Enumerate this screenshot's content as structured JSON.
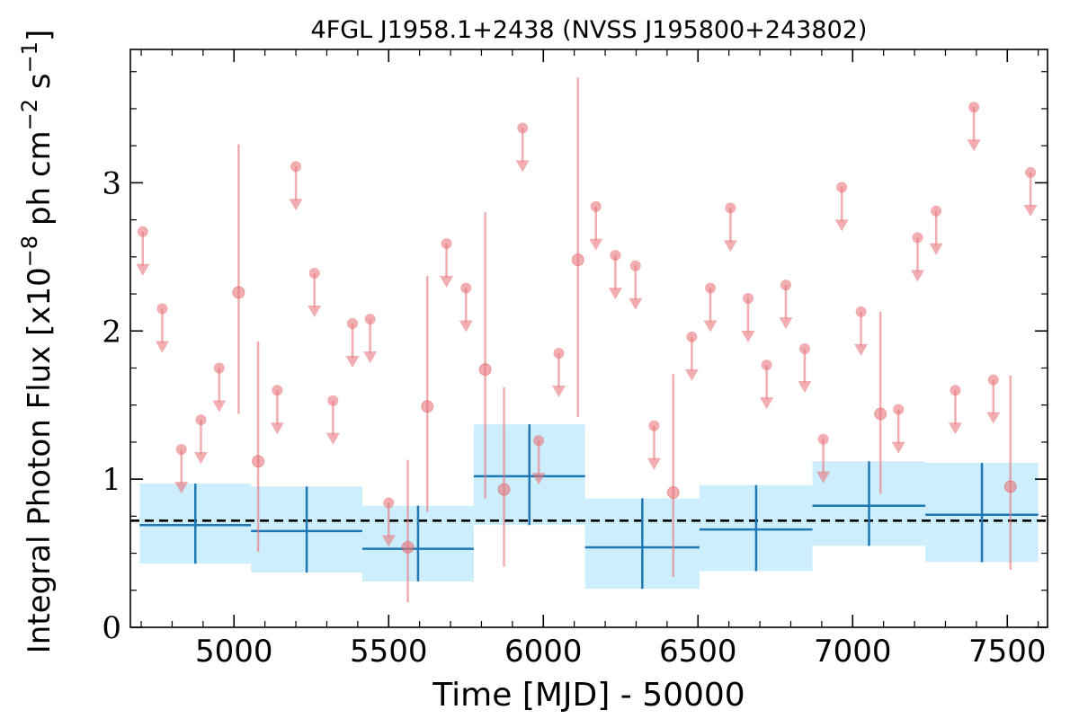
{
  "chart_data": {
    "type": "scatter",
    "title": "4FGL J1958.1+2438 (NVSS J195800+243802)",
    "xlabel": "Time [MJD] - 50000",
    "ylabel": "Integral Photon Flux [x10^-8 ph cm^-2 s^-1]",
    "ylabel_parts": {
      "prefix": "Integral Photon Flux [x10",
      "exp1": "−8",
      "mid1": " ph cm",
      "exp2": "−2",
      "mid2": " s",
      "exp3": "−1",
      "suffix": "]"
    },
    "xlim": [
      4665,
      7630
    ],
    "ylim": [
      0,
      3.9
    ],
    "xticks": [
      {
        "value": 5000,
        "label": "5000"
      },
      {
        "value": 5500,
        "label": "5500"
      },
      {
        "value": 6000,
        "label": "6000"
      },
      {
        "value": 6500,
        "label": "6500"
      },
      {
        "value": 7000,
        "label": "7000"
      },
      {
        "value": 7500,
        "label": "7500"
      }
    ],
    "yticks": [
      {
        "value": 0,
        "label": "0"
      },
      {
        "value": 1,
        "label": "1"
      },
      {
        "value": 2,
        "label": "2"
      },
      {
        "value": 3,
        "label": "3"
      }
    ],
    "grid": false,
    "colors": {
      "points": "#e8777c",
      "bins": "#1f77b4",
      "band": "#cdeefc",
      "mean": "#000000"
    },
    "mean_flux": 0.72,
    "detections": [
      {
        "x": 5015,
        "y": 2.26,
        "lo": 1.44,
        "hi": 3.26
      },
      {
        "x": 5078,
        "y": 1.12,
        "lo": 0.51,
        "hi": 1.93
      },
      {
        "x": 5562,
        "y": 0.54,
        "lo": 0.17,
        "hi": 1.13
      },
      {
        "x": 5625,
        "y": 1.49,
        "lo": 0.78,
        "hi": 2.37
      },
      {
        "x": 5812,
        "y": 1.74,
        "lo": 0.87,
        "hi": 2.8
      },
      {
        "x": 5873,
        "y": 0.93,
        "lo": 0.41,
        "hi": 1.62
      },
      {
        "x": 6112,
        "y": 2.48,
        "lo": 1.42,
        "hi": 3.71
      },
      {
        "x": 6420,
        "y": 0.91,
        "lo": 0.34,
        "hi": 1.71
      },
      {
        "x": 7090,
        "y": 1.44,
        "lo": 0.9,
        "hi": 2.13
      },
      {
        "x": 7510,
        "y": 0.95,
        "lo": 0.39,
        "hi": 1.7
      }
    ],
    "upper_limits": [
      {
        "x": 4705,
        "y": 2.67
      },
      {
        "x": 4768,
        "y": 2.15
      },
      {
        "x": 4830,
        "y": 1.2
      },
      {
        "x": 4893,
        "y": 1.4
      },
      {
        "x": 4952,
        "y": 1.75
      },
      {
        "x": 5140,
        "y": 1.6
      },
      {
        "x": 5200,
        "y": 3.11
      },
      {
        "x": 5260,
        "y": 2.39
      },
      {
        "x": 5320,
        "y": 1.53
      },
      {
        "x": 5383,
        "y": 2.05
      },
      {
        "x": 5440,
        "y": 2.08
      },
      {
        "x": 5500,
        "y": 0.84
      },
      {
        "x": 5687,
        "y": 2.59
      },
      {
        "x": 5750,
        "y": 2.29
      },
      {
        "x": 5933,
        "y": 3.37
      },
      {
        "x": 5985,
        "y": 1.26
      },
      {
        "x": 6050,
        "y": 1.85
      },
      {
        "x": 6170,
        "y": 2.84
      },
      {
        "x": 6233,
        "y": 2.51
      },
      {
        "x": 6298,
        "y": 2.44
      },
      {
        "x": 6358,
        "y": 1.36
      },
      {
        "x": 6480,
        "y": 1.96
      },
      {
        "x": 6540,
        "y": 2.29
      },
      {
        "x": 6605,
        "y": 2.83
      },
      {
        "x": 6662,
        "y": 2.22
      },
      {
        "x": 6722,
        "y": 1.77
      },
      {
        "x": 6784,
        "y": 2.31
      },
      {
        "x": 6845,
        "y": 1.88
      },
      {
        "x": 6905,
        "y": 1.27
      },
      {
        "x": 6965,
        "y": 2.97
      },
      {
        "x": 7027,
        "y": 2.13
      },
      {
        "x": 7148,
        "y": 1.47
      },
      {
        "x": 7210,
        "y": 2.63
      },
      {
        "x": 7270,
        "y": 2.81
      },
      {
        "x": 7332,
        "y": 1.6
      },
      {
        "x": 7392,
        "y": 3.51
      },
      {
        "x": 7455,
        "y": 1.67
      },
      {
        "x": 7575,
        "y": 3.07
      }
    ],
    "bins": [
      {
        "x0": 4695,
        "x1": 5055,
        "xc": 4875,
        "y": 0.69,
        "lo": 0.43,
        "hi": 0.97
      },
      {
        "x0": 5055,
        "x1": 5415,
        "xc": 5235,
        "y": 0.65,
        "lo": 0.37,
        "hi": 0.95
      },
      {
        "x0": 5415,
        "x1": 5775,
        "xc": 5595,
        "y": 0.53,
        "lo": 0.31,
        "hi": 0.82
      },
      {
        "x0": 5775,
        "x1": 6135,
        "xc": 5955,
        "y": 1.02,
        "lo": 0.69,
        "hi": 1.37
      },
      {
        "x0": 6135,
        "x1": 6505,
        "xc": 6320,
        "y": 0.54,
        "lo": 0.26,
        "hi": 0.87
      },
      {
        "x0": 6505,
        "x1": 6870,
        "xc": 6688,
        "y": 0.66,
        "lo": 0.38,
        "hi": 0.96
      },
      {
        "x0": 6870,
        "x1": 7235,
        "xc": 7053,
        "y": 0.82,
        "lo": 0.55,
        "hi": 1.12
      },
      {
        "x0": 7235,
        "x1": 7600,
        "xc": 7418,
        "y": 0.76,
        "lo": 0.44,
        "hi": 1.11
      }
    ]
  }
}
